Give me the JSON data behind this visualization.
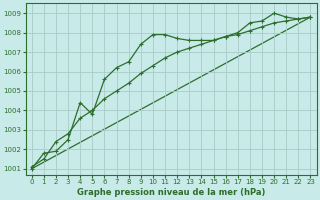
{
  "title": "Graphe pression niveau de la mer (hPa)",
  "bg_color": "#c8eae8",
  "grid_color": "#a8ccc8",
  "line_color": "#2d6e2d",
  "xlim": [
    -0.5,
    23.5
  ],
  "ylim": [
    1000.7,
    1009.5
  ],
  "yticks": [
    1001,
    1002,
    1003,
    1004,
    1005,
    1006,
    1007,
    1008,
    1009
  ],
  "xticks": [
    0,
    1,
    2,
    3,
    4,
    5,
    6,
    7,
    8,
    9,
    10,
    11,
    12,
    13,
    14,
    15,
    16,
    17,
    18,
    19,
    20,
    21,
    22,
    23
  ],
  "series1_marked": {
    "x": [
      0,
      1,
      2,
      3,
      4,
      5,
      6,
      7,
      8,
      9,
      10,
      11,
      12,
      13,
      14,
      15,
      16,
      17,
      18,
      19,
      20,
      21,
      22,
      23
    ],
    "y": [
      1001.0,
      1001.8,
      1001.9,
      1002.5,
      1004.4,
      1003.8,
      1005.6,
      1006.2,
      1006.5,
      1007.4,
      1007.9,
      1007.9,
      1007.7,
      1007.6,
      1007.6,
      1007.6,
      1007.8,
      1008.0,
      1008.5,
      1008.6,
      1009.0,
      1008.8,
      1008.7,
      1008.8
    ]
  },
  "series2_marked": {
    "x": [
      0,
      1,
      2,
      3,
      4,
      5,
      6,
      7,
      8,
      9,
      10,
      11,
      12,
      13,
      14,
      15,
      16,
      17,
      18,
      19,
      20,
      21,
      22,
      23
    ],
    "y": [
      1001.1,
      1001.5,
      1002.4,
      1002.8,
      1003.6,
      1004.0,
      1004.6,
      1005.0,
      1005.4,
      1005.9,
      1006.3,
      1006.7,
      1007.0,
      1007.2,
      1007.4,
      1007.6,
      1007.8,
      1007.9,
      1008.1,
      1008.3,
      1008.5,
      1008.6,
      1008.7,
      1008.8
    ]
  },
  "series3_smooth": {
    "x": [
      0,
      23
    ],
    "y": [
      1001.0,
      1008.8
    ]
  }
}
